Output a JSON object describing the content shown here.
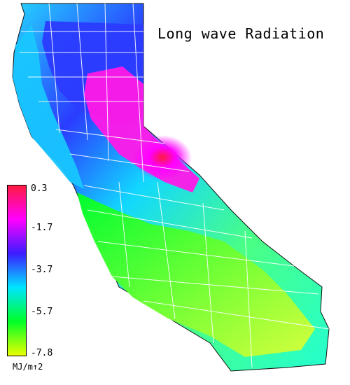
{
  "title": "Long wave Radiation",
  "legend": {
    "ticks": [
      "0.3",
      "-1.7",
      "-3.7",
      "-5.7",
      "-7.8"
    ],
    "unit": "MJ/m↑2",
    "colors": [
      "#ff1a40",
      "#ff00ff",
      "#3b1cff",
      "#00e5ff",
      "#00ff26",
      "#eaff00"
    ]
  },
  "map": {
    "region": "California",
    "colors": {
      "background": "#ffffff",
      "county_lines": "#ffffff",
      "north_coast": "#18c6ff",
      "north_interior": "#2a3cff",
      "sierra_high": "#ff1ae6",
      "central_valley": "#35f3a2",
      "southern_desert": "#9dff2b",
      "lowest_area": "#e6ff23"
    }
  }
}
